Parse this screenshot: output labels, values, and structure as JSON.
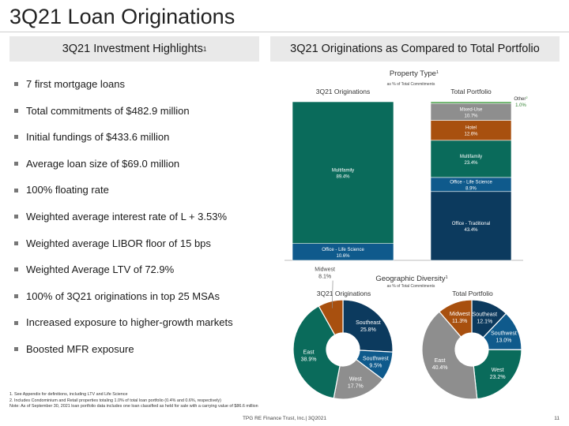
{
  "page": {
    "title": "3Q21 Loan Originations",
    "left_heading": "3Q21 Investment Highlights",
    "left_heading_sup": "1",
    "right_heading": "3Q21 Originations as Compared to Total Portfolio"
  },
  "highlights": [
    "7 first mortgage loans",
    "Total commitments of $482.9 million",
    "Initial fundings of $433.6 million",
    "Average loan size of $69.0 million",
    "100% floating rate",
    "Weighted average interest rate of L + 3.53%",
    "Weighted average LIBOR floor of 15 bps",
    "Weighted Average LTV of 72.9%",
    "100% of 3Q21 originations in top 25 MSAs",
    "Increased exposure to higher-growth markets",
    "Boosted MFR exposure"
  ],
  "footnotes": [
    "1. See Appendix for definitions, including LTV and Life Science",
    "2. Includes Condominium and Retail properties totaling 1.0% of total loan portfolio (0.4% and 0.6%, respectively)",
    "Note: As of September 30, 2021 loan portfolio data includes one loan classified as held for sale with a carrying value of $86.6 million"
  ],
  "footer": "TPG RE Finance Trust, Inc.| 3Q2021",
  "page_number": "11",
  "chart_data": [
    {
      "type": "bar",
      "stacked": true,
      "title": "Property Type",
      "title_sup": "1",
      "subtitle": "as % of Total Commitments",
      "ylim": [
        0,
        100
      ],
      "grid": false,
      "bars": [
        {
          "name": "3Q21 Originations",
          "segments": [
            {
              "label": "Office - Life Science",
              "value": 10.6,
              "value_label": "10.6%",
              "color": "#0f5a8c"
            },
            {
              "label": "Multifamily",
              "value": 89.4,
              "value_label": "89.4%",
              "color": "#0a6b5b"
            }
          ]
        },
        {
          "name": "Total Portfolio",
          "segments": [
            {
              "label": "Office - Traditional",
              "value": 43.4,
              "value_label": "43.4%",
              "color": "#0c3a5e"
            },
            {
              "label": "Office - Life Science",
              "value": 8.9,
              "value_label": "8.9%",
              "color": "#0f5a8c"
            },
            {
              "label": "Multifamily",
              "value": 23.4,
              "value_label": "23.4%",
              "color": "#0a6b5b"
            },
            {
              "label": "Hotel",
              "value": 12.6,
              "value_label": "12.6%",
              "color": "#a8500f"
            },
            {
              "label": "Mixed-Use",
              "value": 10.7,
              "value_label": "10.7%",
              "color": "#8e8e8e"
            },
            {
              "label": "Other",
              "label_sup": "2",
              "value": 1.0,
              "value_label": "1.0%",
              "color": "#3a9a3a",
              "label_outside": true
            }
          ]
        }
      ]
    },
    {
      "type": "pie",
      "donut": true,
      "title": "Geographic Diversity",
      "title_sup": "1",
      "subtitle": "as % of Total Commitments",
      "charts": [
        {
          "name": "3Q21 Originations",
          "slices": [
            {
              "label": "Southeast",
              "value": 25.8,
              "value_label": "25.8%",
              "color": "#0c3a5e"
            },
            {
              "label": "Southwest",
              "value": 9.5,
              "value_label": "9.5%",
              "color": "#0f5a8c"
            },
            {
              "label": "West",
              "value": 17.7,
              "value_label": "17.7%",
              "color": "#8e8e8e"
            },
            {
              "label": "East",
              "value": 38.9,
              "value_label": "38.9%",
              "color": "#0a6b5b"
            },
            {
              "label": "Midwest",
              "value": 8.1,
              "value_label": "8.1%",
              "color": "#a8500f",
              "label_outside": true
            }
          ]
        },
        {
          "name": "Total Portfolio",
          "slices": [
            {
              "label": "Southeast",
              "value": 12.1,
              "value_label": "12.1%",
              "color": "#0c3a5e"
            },
            {
              "label": "Southwest",
              "value": 13.0,
              "value_label": "13.0%",
              "color": "#0f5a8c"
            },
            {
              "label": "West",
              "value": 23.2,
              "value_label": "23.2%",
              "color": "#0a6b5b"
            },
            {
              "label": "East",
              "value": 40.4,
              "value_label": "40.4%",
              "color": "#8e8e8e"
            },
            {
              "label": "Midwest",
              "value": 11.3,
              "value_label": "11.3%",
              "color": "#a8500f"
            }
          ]
        }
      ]
    }
  ]
}
